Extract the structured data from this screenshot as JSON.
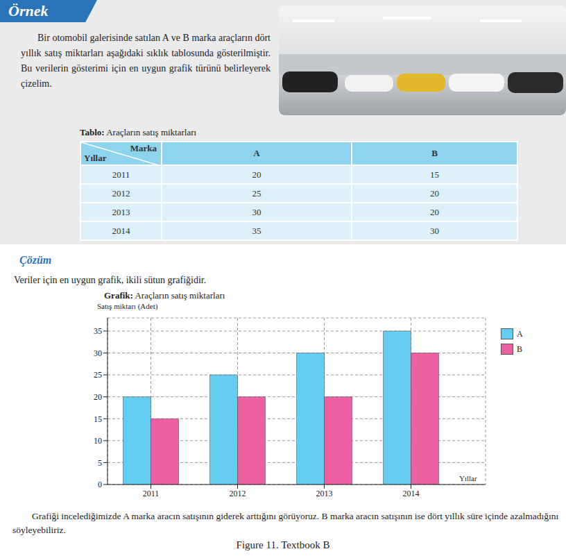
{
  "header": "Örnek",
  "intro": "Bir otomobil galerisinde satılan A ve B marka araçların dört yıllık satış miktarları aşağıdaki sıklık tablosunda gösterilmiştir. Bu verilerin gösterimi için en uygun grafik türünü belirleyerek çizelim.",
  "table": {
    "title": "Tablo: Araçların satış miktarları",
    "corner": {
      "column_head": "Marka",
      "row_head": "Yıllar"
    },
    "columns": [
      "A",
      "B"
    ],
    "rows": [
      [
        2011,
        20,
        15
      ],
      [
        2012,
        25,
        20
      ],
      [
        2013,
        30,
        20
      ],
      [
        2014,
        35,
        30
      ]
    ]
  },
  "solution": {
    "title": "Çözüm",
    "text": "Veriler için en uygun grafik, ikili sütun grafiğidir."
  },
  "chart_data": {
    "type": "bar",
    "title": "Grafik: Araçların satış miktarları",
    "y_label": "Satış miktarı (Adet)",
    "x_label": "Yıllar",
    "categories": [
      "2011",
      "2012",
      "2013",
      "2014"
    ],
    "series": [
      {
        "name": "A",
        "color": "#63cdf2",
        "values": [
          20,
          25,
          30,
          35
        ]
      },
      {
        "name": "B",
        "color": "#ec5fa0",
        "values": [
          15,
          20,
          20,
          30
        ]
      }
    ],
    "ylim": [
      0,
      38
    ],
    "yticks": [
      0,
      5,
      10,
      15,
      20,
      25,
      30,
      35
    ],
    "grid": true,
    "legend": "top-right"
  },
  "conclusion": "Grafiği incelediğimizde A marka aracın satışının giderek arttığını görüyoruz. B marka aracın satışının ise dört yıllık süre içinde azalmadığını söyleyebiliriz.",
  "caption": "Figure 11. Textbook B"
}
